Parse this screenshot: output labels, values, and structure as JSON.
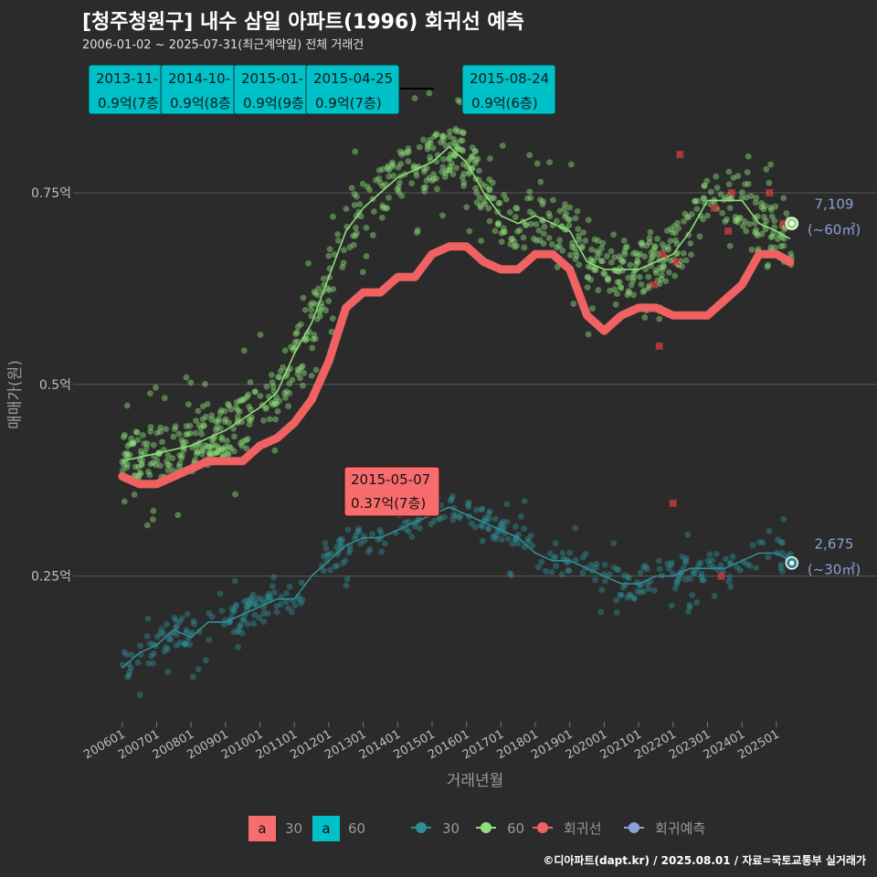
{
  "header": {
    "title": "[청주청원구] 내수 삼일 아파트(1996) 회귀선 예측",
    "subtitle": "2006-01-02 ~ 2025-07-31(최근계약일) 전체 거래건"
  },
  "footer": "©디아파트(dapt.kr) / 2025.08.01 / 자료=국토교통부 실거래가",
  "colors": {
    "background": "#2b2b2b",
    "s30": "#2f8f94",
    "s60": "#8fe07a",
    "regression": "#f06262",
    "forecast": "#8aa0d6",
    "label30_bg": "#f76d6d",
    "label60_bg": "#00c0c8",
    "grid": "#5a5a5a"
  },
  "chart_data": {
    "type": "scatter",
    "xlabel": "거래년월",
    "ylabel": "매매가(원)",
    "x_ticks": [
      "200601",
      "200701",
      "200801",
      "200901",
      "201001",
      "201101",
      "201201",
      "201301",
      "201401",
      "201501",
      "201601",
      "201701",
      "201801",
      "201901",
      "202001",
      "202101",
      "202201",
      "202301",
      "202401",
      "202501"
    ],
    "y_ticks": [
      {
        "value": 0.25,
        "label": "0.25억"
      },
      {
        "value": 0.5,
        "label": "0.5억"
      },
      {
        "value": 0.75,
        "label": "0.75억"
      }
    ],
    "x_range": [
      2005.9,
      2025.8
    ],
    "y_range": [
      0.06,
      0.93
    ],
    "series": [
      {
        "name": "60",
        "trend": [
          [
            2006.0,
            0.4
          ],
          [
            2007.0,
            0.41
          ],
          [
            2008.0,
            0.42
          ],
          [
            2009.0,
            0.44
          ],
          [
            2010.0,
            0.47
          ],
          [
            2010.5,
            0.49
          ],
          [
            2011.0,
            0.54
          ],
          [
            2011.5,
            0.58
          ],
          [
            2012.0,
            0.64
          ],
          [
            2012.5,
            0.7
          ],
          [
            2013.0,
            0.73
          ],
          [
            2013.5,
            0.75
          ],
          [
            2014.0,
            0.77
          ],
          [
            2014.5,
            0.78
          ],
          [
            2015.0,
            0.79
          ],
          [
            2015.5,
            0.81
          ],
          [
            2016.0,
            0.79
          ],
          [
            2016.5,
            0.75
          ],
          [
            2017.0,
            0.72
          ],
          [
            2017.5,
            0.71
          ],
          [
            2018.0,
            0.72
          ],
          [
            2018.5,
            0.71
          ],
          [
            2019.0,
            0.7
          ],
          [
            2019.5,
            0.66
          ],
          [
            2020.0,
            0.65
          ],
          [
            2020.5,
            0.65
          ],
          [
            2021.0,
            0.65
          ],
          [
            2021.5,
            0.66
          ],
          [
            2022.0,
            0.67
          ],
          [
            2022.5,
            0.7
          ],
          [
            2023.0,
            0.74
          ],
          [
            2023.5,
            0.74
          ],
          [
            2024.0,
            0.74
          ],
          [
            2024.5,
            0.71
          ],
          [
            2025.0,
            0.7
          ],
          [
            2025.4,
            0.69
          ]
        ],
        "end_point": [
          2025.45,
          0.71
        ],
        "end_label_value": "7,109",
        "end_label_area": "(~60㎡)"
      },
      {
        "name": "30",
        "trend": [
          [
            2006.0,
            0.13
          ],
          [
            2006.5,
            0.15
          ],
          [
            2007.0,
            0.16
          ],
          [
            2007.5,
            0.18
          ],
          [
            2008.0,
            0.17
          ],
          [
            2008.5,
            0.19
          ],
          [
            2009.0,
            0.19
          ],
          [
            2009.5,
            0.2
          ],
          [
            2010.0,
            0.21
          ],
          [
            2010.5,
            0.22
          ],
          [
            2011.0,
            0.22
          ],
          [
            2011.5,
            0.25
          ],
          [
            2012.0,
            0.27
          ],
          [
            2012.5,
            0.29
          ],
          [
            2013.0,
            0.3
          ],
          [
            2013.5,
            0.3
          ],
          [
            2014.0,
            0.31
          ],
          [
            2014.5,
            0.32
          ],
          [
            2015.0,
            0.33
          ],
          [
            2015.5,
            0.34
          ],
          [
            2016.0,
            0.33
          ],
          [
            2016.5,
            0.32
          ],
          [
            2017.0,
            0.31
          ],
          [
            2017.5,
            0.3
          ],
          [
            2018.0,
            0.28
          ],
          [
            2018.5,
            0.27
          ],
          [
            2019.0,
            0.27
          ],
          [
            2019.5,
            0.26
          ],
          [
            2020.0,
            0.25
          ],
          [
            2020.5,
            0.24
          ],
          [
            2021.0,
            0.24
          ],
          [
            2021.5,
            0.25
          ],
          [
            2022.0,
            0.25
          ],
          [
            2022.5,
            0.26
          ],
          [
            2023.0,
            0.26
          ],
          [
            2023.5,
            0.26
          ],
          [
            2024.0,
            0.27
          ],
          [
            2024.5,
            0.28
          ],
          [
            2025.0,
            0.28
          ],
          [
            2025.4,
            0.27
          ]
        ],
        "end_point": [
          2025.45,
          0.267
        ],
        "end_label_value": "2,675",
        "end_label_area": "(~30㎡)"
      },
      {
        "name": "회귀선",
        "trend": [
          [
            2006.0,
            0.38
          ],
          [
            2006.5,
            0.37
          ],
          [
            2007.0,
            0.37
          ],
          [
            2007.5,
            0.38
          ],
          [
            2008.0,
            0.39
          ],
          [
            2008.5,
            0.4
          ],
          [
            2009.0,
            0.4
          ],
          [
            2009.5,
            0.4
          ],
          [
            2010.0,
            0.42
          ],
          [
            2010.5,
            0.43
          ],
          [
            2011.0,
            0.45
          ],
          [
            2011.5,
            0.48
          ],
          [
            2012.0,
            0.53
          ],
          [
            2012.5,
            0.6
          ],
          [
            2013.0,
            0.62
          ],
          [
            2013.5,
            0.62
          ],
          [
            2014.0,
            0.64
          ],
          [
            2014.5,
            0.64
          ],
          [
            2015.0,
            0.67
          ],
          [
            2015.5,
            0.68
          ],
          [
            2016.0,
            0.68
          ],
          [
            2016.5,
            0.66
          ],
          [
            2017.0,
            0.65
          ],
          [
            2017.5,
            0.65
          ],
          [
            2018.0,
            0.67
          ],
          [
            2018.5,
            0.67
          ],
          [
            2019.0,
            0.65
          ],
          [
            2019.5,
            0.59
          ],
          [
            2020.0,
            0.57
          ],
          [
            2020.5,
            0.59
          ],
          [
            2021.0,
            0.6
          ],
          [
            2021.5,
            0.6
          ],
          [
            2022.0,
            0.59
          ],
          [
            2022.5,
            0.59
          ],
          [
            2023.0,
            0.59
          ],
          [
            2023.5,
            0.61
          ],
          [
            2024.0,
            0.63
          ],
          [
            2024.5,
            0.67
          ],
          [
            2025.0,
            0.67
          ],
          [
            2025.4,
            0.66
          ]
        ]
      }
    ],
    "regression_outliers": [
      [
        2021.45,
        0.63
      ],
      [
        2021.7,
        0.67
      ],
      [
        2022.1,
        0.66
      ],
      [
        2021.6,
        0.55
      ],
      [
        2022.2,
        0.8
      ],
      [
        2022.0,
        0.345
      ],
      [
        2023.2,
        0.73
      ],
      [
        2023.6,
        0.7
      ],
      [
        2023.7,
        0.75
      ],
      [
        2024.8,
        0.75
      ],
      [
        2025.2,
        0.71
      ],
      [
        2023.4,
        0.25
      ]
    ],
    "annotations_60": [
      {
        "date": "2013-11-",
        "price": "0.9억(7층"
      },
      {
        "date": "2014-10-",
        "price": "0.9억(8층"
      },
      {
        "date": "2015-01-",
        "price": "0.9억(9층"
      },
      {
        "date": "2015-04-25",
        "price": "0.9억(7층)"
      },
      {
        "date": "2015-08-24",
        "price": "0.9억(6층)"
      }
    ],
    "annotation_30": {
      "date": "2015-05-07",
      "price": "0.37억(7층)"
    },
    "legend": {
      "label_boxes": [
        {
          "key": "a",
          "label": "30"
        },
        {
          "key": "a",
          "label": "60"
        }
      ],
      "lines": [
        {
          "label": "30"
        },
        {
          "label": "60"
        },
        {
          "label": "회귀선"
        },
        {
          "label": "회귀예측"
        }
      ]
    }
  }
}
